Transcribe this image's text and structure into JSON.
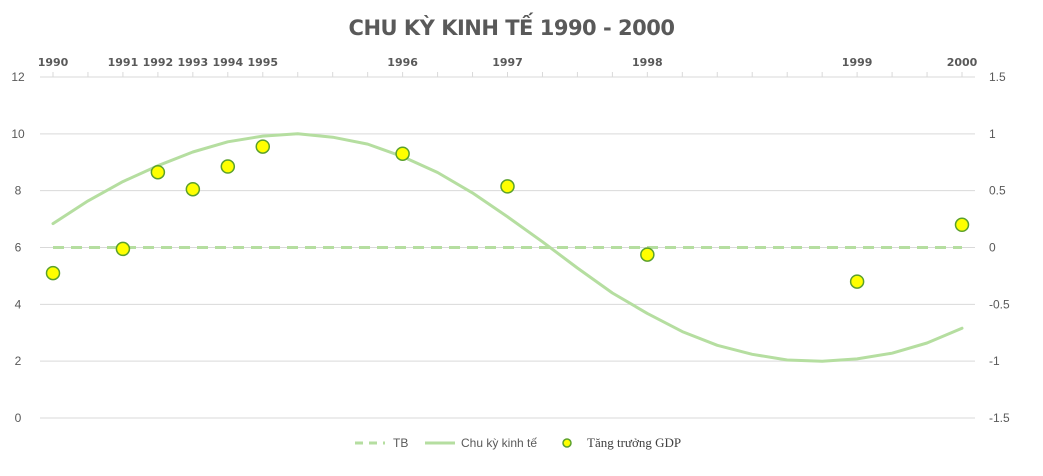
{
  "chart_data": {
    "type": "line",
    "title": "CHU KỲ KINH TẾ 1990 - 2000",
    "x_labels": [
      "1990",
      "1991",
      "1992",
      "1993",
      "1994",
      "1995",
      "1996",
      "1997",
      "1998",
      "1999",
      "2000"
    ],
    "x_positions": [
      0,
      2,
      3,
      4,
      5,
      6,
      10,
      13,
      17,
      23,
      26
    ],
    "xlim": [
      0,
      26
    ],
    "y_left": {
      "lim": [
        0,
        12
      ],
      "ticks": [
        "0",
        "2",
        "4",
        "6",
        "8",
        "10",
        "12"
      ]
    },
    "y_right": {
      "lim": [
        -1.5,
        1.5
      ],
      "ticks": [
        "-1.5",
        "-1",
        "-0.5",
        "0",
        "0.5",
        "1",
        "1.5"
      ]
    },
    "grid": true,
    "legend_position": "bottom",
    "series": [
      {
        "name": "TB",
        "style": "dashed",
        "axis": "left",
        "color": "#b5dea0",
        "x": [
          0,
          26
        ],
        "y": [
          6,
          6
        ]
      },
      {
        "name": "Chu kỳ kinh tế",
        "style": "line",
        "axis": "right",
        "color": "#b5dea0",
        "x": [
          0,
          1,
          2,
          3,
          4,
          5,
          6,
          7,
          8,
          9,
          10,
          11,
          12,
          13,
          14,
          15,
          16,
          17,
          18,
          19,
          20,
          21,
          22,
          23,
          24,
          25,
          26
        ],
        "y": [
          0.21,
          0.41,
          0.58,
          0.72,
          0.84,
          0.93,
          0.98,
          1.0,
          0.97,
          0.91,
          0.8,
          0.66,
          0.48,
          0.27,
          0.05,
          -0.18,
          -0.4,
          -0.58,
          -0.74,
          -0.86,
          -0.94,
          -0.99,
          -1.0,
          -0.98,
          -0.93,
          -0.84,
          -0.71
        ]
      },
      {
        "name": "Tăng trưởng GDP",
        "style": "marker",
        "axis": "left",
        "color": "#ffff00",
        "edge_color": "#5aa02c",
        "x": [
          0,
          2,
          3,
          4,
          5,
          6,
          10,
          13,
          17,
          23,
          26
        ],
        "y": [
          5.1,
          5.95,
          8.65,
          8.05,
          8.85,
          9.55,
          9.3,
          8.15,
          5.75,
          4.8,
          6.8
        ]
      }
    ]
  }
}
